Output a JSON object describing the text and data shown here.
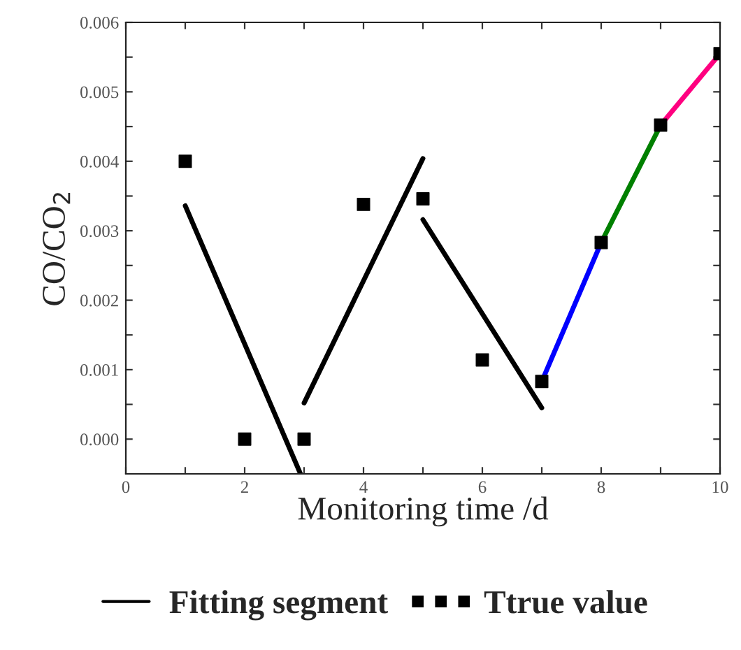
{
  "chart_data": {
    "type": "line",
    "xlabel": "Monitoring time /d",
    "ylabel": "CO/CO$_{2}$",
    "xlim": [
      0,
      10
    ],
    "ylim": [
      -0.0005,
      0.006
    ],
    "xticks": [
      0,
      {
        "value": 1,
        "label": null
      },
      2,
      {
        "value": 3,
        "label": null
      },
      4,
      {
        "value": 5,
        "label": null
      },
      6,
      {
        "value": 7,
        "label": null
      },
      8,
      {
        "value": 9,
        "label": null
      },
      10
    ],
    "yticks": [
      {
        "value": 0,
        "label": "0.000"
      },
      {
        "value": 0.0005,
        "label": null
      },
      {
        "value": 0.001,
        "label": "0.001"
      },
      {
        "value": 0.0015,
        "label": null
      },
      {
        "value": 0.002,
        "label": "0.002"
      },
      {
        "value": 0.0025,
        "label": null
      },
      {
        "value": 0.003,
        "label": "0.003"
      },
      {
        "value": 0.0035,
        "label": null
      },
      {
        "value": 0.004,
        "label": "0.004"
      },
      {
        "value": 0.0045,
        "label": null
      },
      {
        "value": 0.005,
        "label": "0.005"
      },
      {
        "value": 0.0055,
        "label": null
      },
      {
        "value": 0.006,
        "label": "0.006"
      }
    ],
    "grid": false,
    "legend": "bottom",
    "line_style": "solid",
    "series": [
      {
        "name": "Fitting segment",
        "type": "line",
        "color": "#000000",
        "x": [
          1,
          2.94
        ],
        "values": [
          0.00336,
          -0.0005
        ],
        "marker": "none"
      },
      {
        "type": "line",
        "color": "#000000",
        "x": [
          3,
          5
        ],
        "values": [
          0.00052,
          0.00404
        ],
        "marker": "none"
      },
      {
        "type": "line",
        "color": "#000000",
        "x": [
          5,
          7
        ],
        "values": [
          0.00316,
          0.00045
        ],
        "marker": "none"
      },
      {
        "type": "line",
        "color": "#0000ff",
        "x": [
          7,
          8
        ],
        "values": [
          0.00083,
          0.00283
        ],
        "marker": "none"
      },
      {
        "type": "line",
        "color": "#008000",
        "x": [
          8,
          9
        ],
        "values": [
          0.00283,
          0.00452
        ],
        "marker": "none"
      },
      {
        "type": "line",
        "color": "#ff0080",
        "x": [
          9,
          10
        ],
        "values": [
          0.00452,
          0.00555
        ],
        "marker": "none"
      },
      {
        "name": "Ttrue value",
        "type": "scatter",
        "color": "#000000",
        "marker": "square",
        "x": [
          1,
          2,
          3,
          4,
          5,
          6,
          7,
          8,
          9,
          10
        ],
        "values": [
          0.004,
          0.0,
          0.0,
          0.00338,
          0.00346,
          0.00114,
          0.00083,
          0.00283,
          0.00452,
          0.00555
        ]
      }
    ]
  }
}
